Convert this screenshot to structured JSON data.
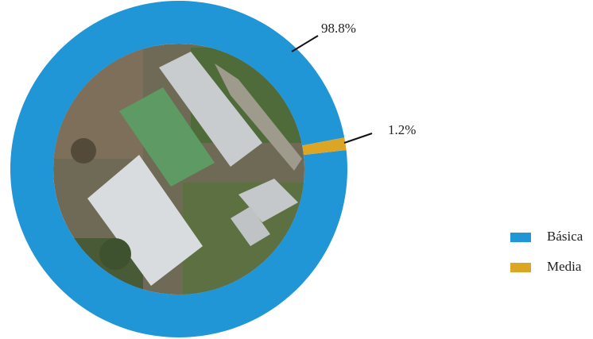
{
  "chart_data": {
    "type": "donut",
    "categories": [
      "Básica",
      "Media"
    ],
    "values": [
      98.8,
      1.2
    ],
    "value_labels": [
      "98.8%",
      "1.2%"
    ],
    "colors": [
      "#2196d6",
      "#dba526"
    ],
    "legend": "right"
  }
}
